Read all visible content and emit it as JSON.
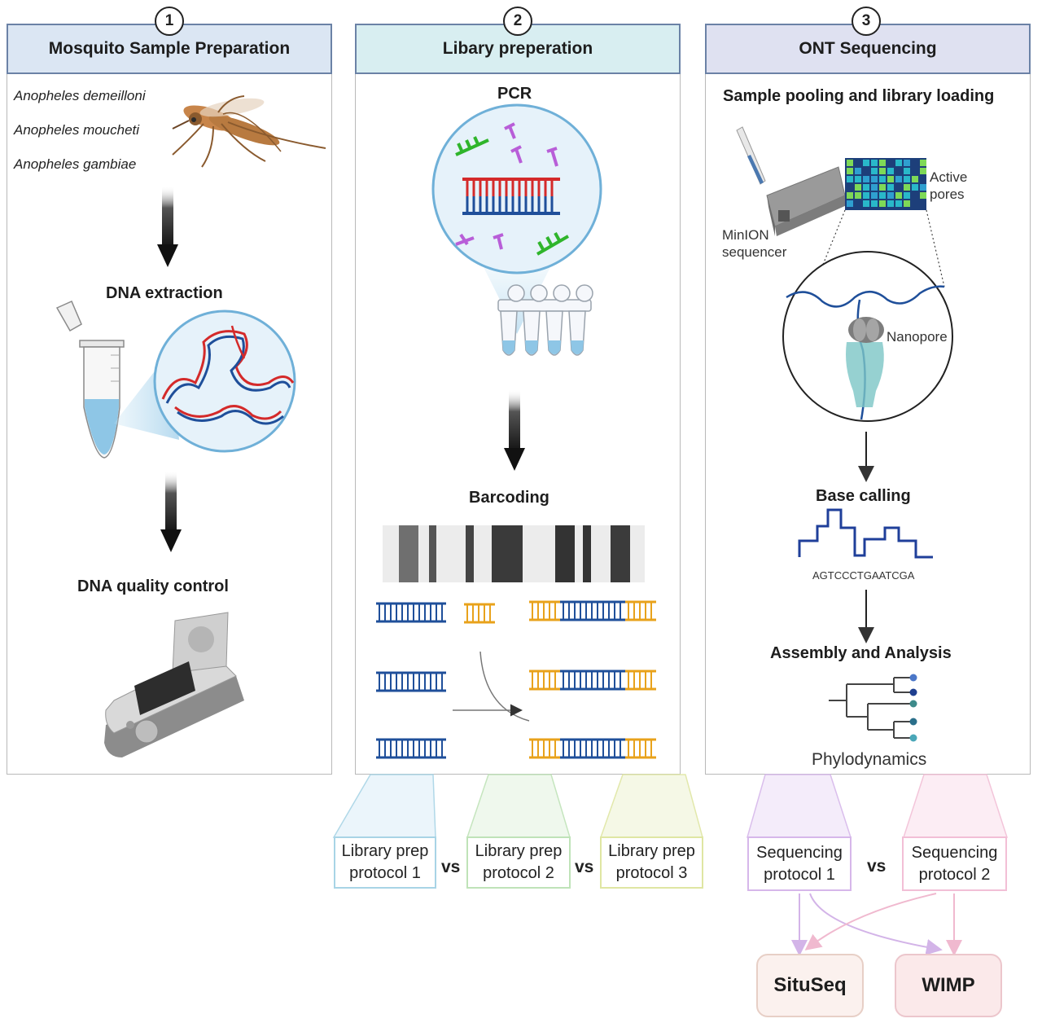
{
  "panels": [
    {
      "number": "1",
      "title": "Mosquito Sample Preparation"
    },
    {
      "number": "2",
      "title": "Libary preperation"
    },
    {
      "number": "3",
      "title": "ONT Sequencing"
    }
  ],
  "panel1": {
    "species": [
      "Anopheles demeilloni",
      "Anopheles moucheti",
      "Anopheles gambiae"
    ],
    "step_extraction": "DNA extraction",
    "step_qc": "DNA quality control"
  },
  "panel2": {
    "step_pcr": "PCR",
    "step_barcoding": "Barcoding",
    "protocols": [
      {
        "line1": "Library prep",
        "line2": "protocol 1"
      },
      {
        "line1": "Library prep",
        "line2": "protocol 2"
      },
      {
        "line1": "Library prep",
        "line2": "protocol 3"
      }
    ],
    "vs": "vs"
  },
  "panel3": {
    "step_loading": "Sample pooling and library loading",
    "active_pores_1": "Active",
    "active_pores_2": "pores",
    "minion_1": "MinION",
    "minion_2": "sequencer",
    "nanopore": "Nanopore",
    "step_basecalling": "Base calling",
    "sequence": "AGTCCCTGAATCGA",
    "step_assembly": "Assembly and Analysis",
    "phylo": "Phylodynamics",
    "protocols": [
      {
        "line1": "Sequencing",
        "line2": "protocol 1"
      },
      {
        "line1": "Sequencing",
        "line2": "protocol 2"
      }
    ],
    "vs": "vs"
  },
  "outputs": [
    "SituSeq",
    "WIMP"
  ],
  "colors": {
    "header1": "#dbe6f3",
    "header2": "#d8eef1",
    "header3": "#dfe1f1",
    "dna_red": "#d42a2a",
    "dna_blue": "#1f4f9a",
    "barcode_orange": "#e8a21b",
    "primer_green": "#2fb52b",
    "primer_purple": "#b85ed8",
    "proto_blue": "#a8d4e6",
    "proto_green": "#bfe3b8",
    "proto_yellow": "#dfe6a3",
    "seq_purple": "#d6b7ea",
    "seq_pink": "#f2bfd6",
    "situseq_fill": "#fbf1ee",
    "wimp_fill": "#fbe9ea"
  },
  "icons": [
    "mosquito-icon",
    "tube-icon",
    "dna-helix-icon",
    "spectrophotometer-icon",
    "pcr-tubes-icon",
    "barcode-icon",
    "minion-icon",
    "pipette-icon",
    "nanopore-icon",
    "signal-trace-icon",
    "phylo-tree-icon"
  ]
}
